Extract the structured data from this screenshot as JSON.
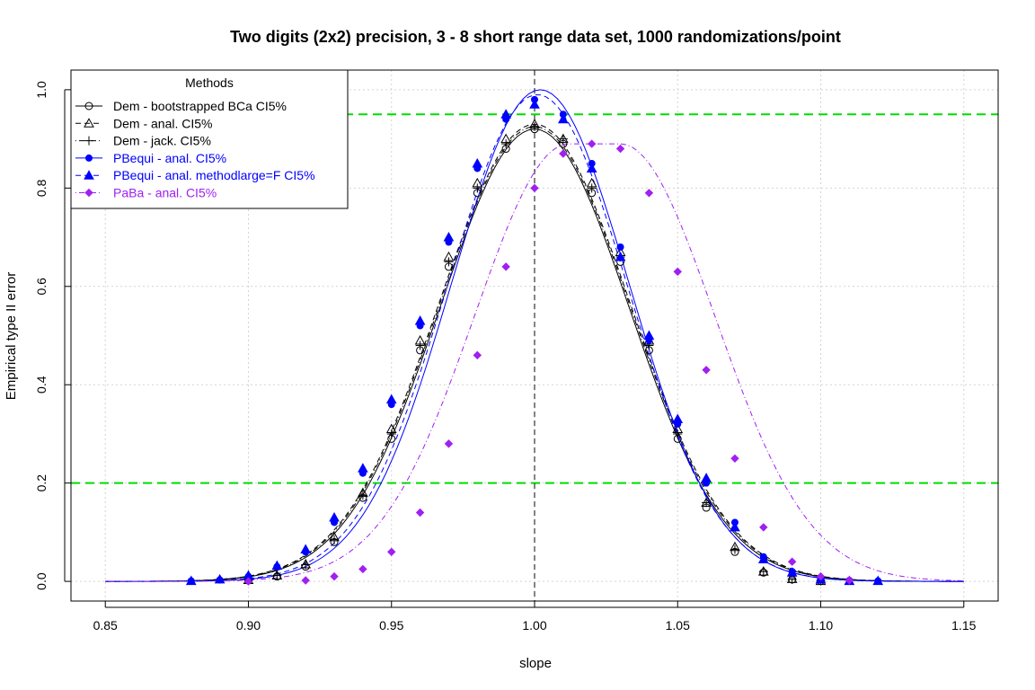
{
  "chart_data": {
    "type": "scatter",
    "title": "Two digits (2x2) precision, 3 - 8 short range data set, 1000 randomizations/point",
    "xlabel": "slope",
    "ylabel": "Empirical type II error",
    "xlim": [
      0.838,
      1.162
    ],
    "ylim": [
      -0.04,
      1.04
    ],
    "x_ticks": [
      "0.85",
      "0.90",
      "0.95",
      "1.00",
      "1.05",
      "1.10",
      "1.15"
    ],
    "x_tick_values": [
      0.85,
      0.9,
      0.95,
      1.0,
      1.05,
      1.1,
      1.15
    ],
    "y_ticks": [
      "0.0",
      "0.2",
      "0.4",
      "0.6",
      "0.8",
      "1.0"
    ],
    "y_tick_values": [
      0.0,
      0.2,
      0.4,
      0.6,
      0.8,
      1.0
    ],
    "grid": true,
    "reference_lines": [
      {
        "orientation": "horizontal",
        "value": 0.95,
        "color": "#00dd00",
        "style": "dashed"
      },
      {
        "orientation": "horizontal",
        "value": 0.2,
        "color": "#00dd00",
        "style": "dashed"
      },
      {
        "orientation": "vertical",
        "value": 1.0,
        "color": "#333333",
        "style": "dashed"
      }
    ],
    "legend": {
      "title": "Methods",
      "position": "top-left",
      "entries": [
        {
          "label": "Dem - bootstrapped BCa CI5%",
          "color": "#000000",
          "marker": "circle",
          "line": "solid"
        },
        {
          "label": "Dem - anal. CI5%",
          "color": "#000000",
          "marker": "triangle-open",
          "line": "dashed"
        },
        {
          "label": "Dem - jack. CI5%",
          "color": "#000000",
          "marker": "plus",
          "line": "dotdash"
        },
        {
          "label": "PBequi - anal. CI5%",
          "color": "#0000ff",
          "marker": "dot-filled",
          "line": "solid"
        },
        {
          "label": "PBequi - anal. methodlarge=F CI5%",
          "color": "#0000ff",
          "marker": "triangle-filled",
          "line": "dashed"
        },
        {
          "label": "PaBa - anal. CI5%",
          "color": "#a020f0",
          "marker": "diamond-filled",
          "line": "dotdash"
        }
      ]
    },
    "series": [
      {
        "label_ref": 0,
        "color": "#000000",
        "points": [
          [
            0.9,
            0.002
          ],
          [
            0.91,
            0.01
          ],
          [
            0.92,
            0.03
          ],
          [
            0.93,
            0.08
          ],
          [
            0.94,
            0.17
          ],
          [
            0.95,
            0.29
          ],
          [
            0.96,
            0.47
          ],
          [
            0.97,
            0.64
          ],
          [
            0.98,
            0.79
          ],
          [
            0.99,
            0.88
          ],
          [
            1.0,
            0.92
          ],
          [
            1.01,
            0.89
          ],
          [
            1.02,
            0.79
          ],
          [
            1.03,
            0.65
          ],
          [
            1.04,
            0.47
          ],
          [
            1.05,
            0.29
          ],
          [
            1.06,
            0.15
          ],
          [
            1.07,
            0.06
          ],
          [
            1.08,
            0.018
          ],
          [
            1.09,
            0.004
          ],
          [
            1.1,
            0.001
          ]
        ],
        "curve": {
          "peak": 0.92,
          "center": 1.0,
          "sigma": 0.033
        }
      },
      {
        "label_ref": 1,
        "color": "#000000",
        "points": [
          [
            0.9,
            0.003
          ],
          [
            0.91,
            0.012
          ],
          [
            0.92,
            0.035
          ],
          [
            0.93,
            0.09
          ],
          [
            0.94,
            0.18
          ],
          [
            0.95,
            0.31
          ],
          [
            0.96,
            0.49
          ],
          [
            0.97,
            0.66
          ],
          [
            0.98,
            0.81
          ],
          [
            0.99,
            0.9
          ],
          [
            1.0,
            0.93
          ],
          [
            1.01,
            0.9
          ],
          [
            1.02,
            0.81
          ],
          [
            1.03,
            0.67
          ],
          [
            1.04,
            0.49
          ],
          [
            1.05,
            0.31
          ],
          [
            1.06,
            0.16
          ],
          [
            1.07,
            0.07
          ],
          [
            1.08,
            0.02
          ],
          [
            1.09,
            0.005
          ],
          [
            1.1,
            0.001
          ]
        ],
        "curve": {
          "peak": 0.93,
          "center": 1.0,
          "sigma": 0.0335
        }
      },
      {
        "label_ref": 2,
        "color": "#000000",
        "points": [
          [
            0.9,
            0.003
          ],
          [
            0.91,
            0.012
          ],
          [
            0.92,
            0.034
          ],
          [
            0.93,
            0.085
          ],
          [
            0.94,
            0.175
          ],
          [
            0.95,
            0.3
          ],
          [
            0.96,
            0.48
          ],
          [
            0.97,
            0.65
          ],
          [
            0.98,
            0.8
          ],
          [
            0.99,
            0.89
          ],
          [
            1.0,
            0.925
          ],
          [
            1.01,
            0.9
          ],
          [
            1.02,
            0.8
          ],
          [
            1.03,
            0.66
          ],
          [
            1.04,
            0.48
          ],
          [
            1.05,
            0.3
          ],
          [
            1.06,
            0.16
          ],
          [
            1.07,
            0.065
          ],
          [
            1.08,
            0.02
          ],
          [
            1.09,
            0.004
          ],
          [
            1.1,
            0.001
          ]
        ],
        "curve": {
          "peak": 0.925,
          "center": 1.0,
          "sigma": 0.0333
        }
      },
      {
        "label_ref": 3,
        "color": "#0000ff",
        "points": [
          [
            0.88,
            0.001
          ],
          [
            0.89,
            0.003
          ],
          [
            0.9,
            0.01
          ],
          [
            0.91,
            0.03
          ],
          [
            0.92,
            0.06
          ],
          [
            0.93,
            0.12
          ],
          [
            0.94,
            0.22
          ],
          [
            0.95,
            0.36
          ],
          [
            0.96,
            0.52
          ],
          [
            0.97,
            0.69
          ],
          [
            0.98,
            0.84
          ],
          [
            0.99,
            0.94
          ],
          [
            1.0,
            0.98
          ],
          [
            1.01,
            0.95
          ],
          [
            1.02,
            0.85
          ],
          [
            1.03,
            0.68
          ],
          [
            1.04,
            0.49
          ],
          [
            1.05,
            0.32
          ],
          [
            1.06,
            0.2
          ],
          [
            1.07,
            0.12
          ],
          [
            1.08,
            0.05
          ],
          [
            1.09,
            0.02
          ],
          [
            1.1,
            0.005
          ],
          [
            1.11,
            0.002
          ],
          [
            1.12,
            0.001
          ]
        ],
        "curve": {
          "peak": 1.0,
          "center": 1.002,
          "sigma": 0.031
        }
      },
      {
        "label_ref": 4,
        "color": "#0000ff",
        "points": [
          [
            0.88,
            0.001
          ],
          [
            0.89,
            0.004
          ],
          [
            0.9,
            0.012
          ],
          [
            0.91,
            0.032
          ],
          [
            0.92,
            0.065
          ],
          [
            0.93,
            0.13
          ],
          [
            0.94,
            0.23
          ],
          [
            0.95,
            0.37
          ],
          [
            0.96,
            0.53
          ],
          [
            0.97,
            0.7
          ],
          [
            0.98,
            0.85
          ],
          [
            0.99,
            0.95
          ],
          [
            1.0,
            0.97
          ],
          [
            1.01,
            0.94
          ],
          [
            1.02,
            0.84
          ],
          [
            1.03,
            0.66
          ],
          [
            1.04,
            0.5
          ],
          [
            1.05,
            0.33
          ],
          [
            1.06,
            0.21
          ],
          [
            1.07,
            0.11
          ],
          [
            1.08,
            0.045
          ],
          [
            1.09,
            0.018
          ],
          [
            1.1,
            0.004
          ],
          [
            1.11,
            0.001
          ],
          [
            1.12,
            0.001
          ]
        ],
        "curve": {
          "peak": 0.99,
          "center": 1.001,
          "sigma": 0.0315
        }
      },
      {
        "label_ref": 5,
        "color": "#a020f0",
        "points": [
          [
            0.9,
            0.0
          ],
          [
            0.92,
            0.002
          ],
          [
            0.93,
            0.01
          ],
          [
            0.94,
            0.025
          ],
          [
            0.95,
            0.06
          ],
          [
            0.96,
            0.14
          ],
          [
            0.97,
            0.28
          ],
          [
            0.98,
            0.46
          ],
          [
            0.99,
            0.64
          ],
          [
            1.0,
            0.8
          ],
          [
            1.01,
            0.87
          ],
          [
            1.02,
            0.89
          ],
          [
            1.03,
            0.88
          ],
          [
            1.04,
            0.79
          ],
          [
            1.05,
            0.63
          ],
          [
            1.06,
            0.43
          ],
          [
            1.07,
            0.25
          ],
          [
            1.08,
            0.11
          ],
          [
            1.09,
            0.04
          ],
          [
            1.1,
            0.01
          ],
          [
            1.11,
            0.002
          ]
        ],
        "curve": {
          "peak": 0.89,
          "center": 1.022,
          "sigma": 0.033,
          "plateau": [
            1.012,
            1.03
          ]
        }
      }
    ]
  }
}
